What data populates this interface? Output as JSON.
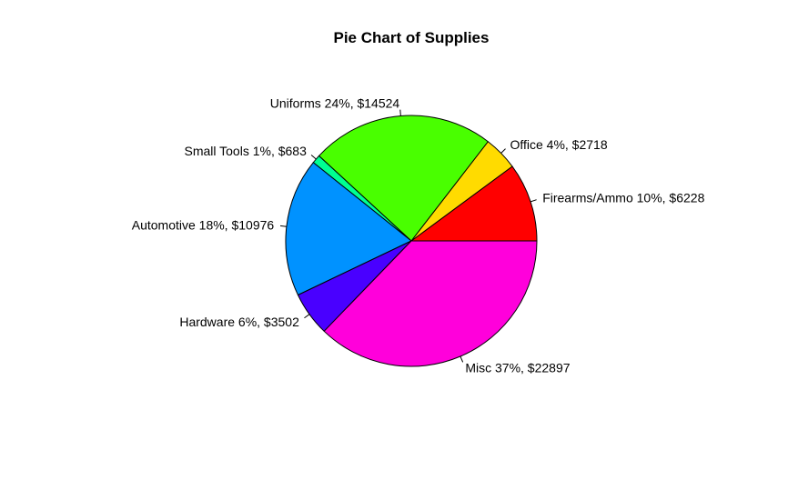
{
  "chart_data": {
    "type": "pie",
    "title": "Pie Chart of Supplies",
    "slices": [
      {
        "category": "Firearms/Ammo",
        "value": 6228,
        "percent": 10,
        "label": "Firearms/Ammo 10%, $6228",
        "color": "#FF0000"
      },
      {
        "category": "Office",
        "value": 2718,
        "percent": 4,
        "label": "Office 4%, $2718",
        "color": "#FFDB00"
      },
      {
        "category": "Uniforms",
        "value": 14524,
        "percent": 24,
        "label": "Uniforms 24%, $14524",
        "color": "#49FF00"
      },
      {
        "category": "Small Tools",
        "value": 683,
        "percent": 1,
        "label": "Small Tools 1%, $683",
        "color": "#00FF92"
      },
      {
        "category": "Automotive",
        "value": 10976,
        "percent": 18,
        "label": "Automotive 18%, $10976",
        "color": "#0092FF"
      },
      {
        "category": "Hardware",
        "value": 3502,
        "percent": 6,
        "label": "Hardware 6%, $3502",
        "color": "#4900FF"
      },
      {
        "category": "Misc",
        "value": 22897,
        "percent": 37,
        "label": "Misc 37%, $22897",
        "color": "#FF00DB"
      }
    ],
    "start_angle": "3 o'clock",
    "direction": "counterclockwise",
    "legend": "none"
  }
}
